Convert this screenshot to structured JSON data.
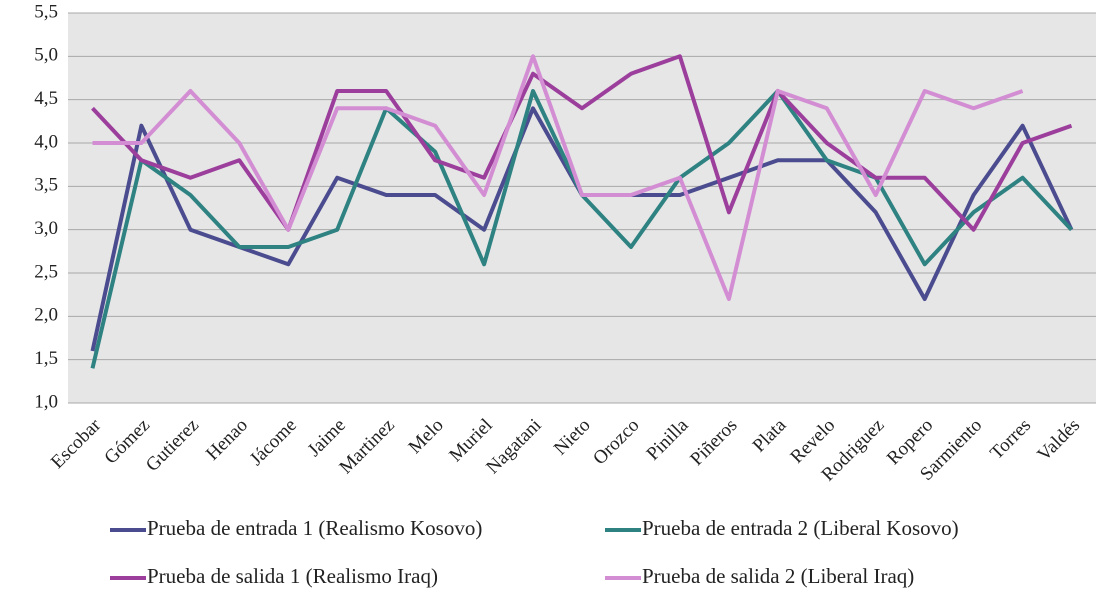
{
  "chart_data": {
    "type": "line",
    "categories": [
      "Escobar",
      "Gómez",
      "Gutierez",
      "Henao",
      "Jácome",
      "Jaime",
      "Martinez",
      "Melo",
      "Muriel",
      "Nagatani",
      "Nieto",
      "Orozco",
      "Pinilla",
      "Piñeros",
      "Plata",
      "Revelo",
      "Rodriguez",
      "Ropero",
      "Sarmiento",
      "Torres",
      "Valdés"
    ],
    "series": [
      {
        "name": "Prueba de entrada 1 (Realismo Kosovo)",
        "color": "#4b4b8f",
        "values": [
          1.6,
          4.2,
          3.0,
          2.8,
          2.6,
          3.6,
          3.4,
          3.4,
          3.0,
          4.4,
          3.4,
          3.4,
          3.4,
          3.6,
          3.8,
          3.8,
          3.2,
          2.2,
          3.4,
          4.2,
          3.0
        ]
      },
      {
        "name": "Prueba de entrada 2 (Liberal Kosovo)",
        "color": "#2f8282",
        "values": [
          1.4,
          3.8,
          3.4,
          2.8,
          2.8,
          3.0,
          4.4,
          3.9,
          2.6,
          4.6,
          3.4,
          2.8,
          3.6,
          4.0,
          4.6,
          3.8,
          3.6,
          2.6,
          3.2,
          3.6,
          3.0
        ]
      },
      {
        "name": "Prueba de salida 1 (Realismo Iraq)",
        "color": "#9c3e9c",
        "values": [
          4.4,
          3.8,
          3.6,
          3.8,
          3.0,
          4.6,
          4.6,
          3.8,
          3.6,
          4.8,
          4.4,
          4.8,
          5.0,
          3.2,
          4.6,
          4.0,
          3.6,
          3.6,
          3.0,
          4.0,
          4.2
        ]
      },
      {
        "name": "Prueba de salida 2 (Liberal Iraq)",
        "color": "#d38ed3",
        "values": [
          4.0,
          4.0,
          4.6,
          4.0,
          3.0,
          4.4,
          4.4,
          4.2,
          3.4,
          5.0,
          3.4,
          3.4,
          3.6,
          2.2,
          4.6,
          4.4,
          3.4,
          4.6,
          4.4,
          4.6,
          null
        ]
      }
    ],
    "ylim": [
      1.0,
      5.5
    ],
    "yticks": [
      {
        "value": 1.0,
        "label": "1,0"
      },
      {
        "value": 1.5,
        "label": "1,5"
      },
      {
        "value": 2.0,
        "label": "2,0"
      },
      {
        "value": 2.5,
        "label": "2,5"
      },
      {
        "value": 3.0,
        "label": "3,0"
      },
      {
        "value": 3.5,
        "label": "3,5"
      },
      {
        "value": 4.0,
        "label": "4,0"
      },
      {
        "value": 4.5,
        "label": "4,5"
      },
      {
        "value": 5.0,
        "label": "5,0"
      },
      {
        "value": 5.5,
        "label": "5,5"
      }
    ],
    "grid": true,
    "legend": "bottom"
  }
}
